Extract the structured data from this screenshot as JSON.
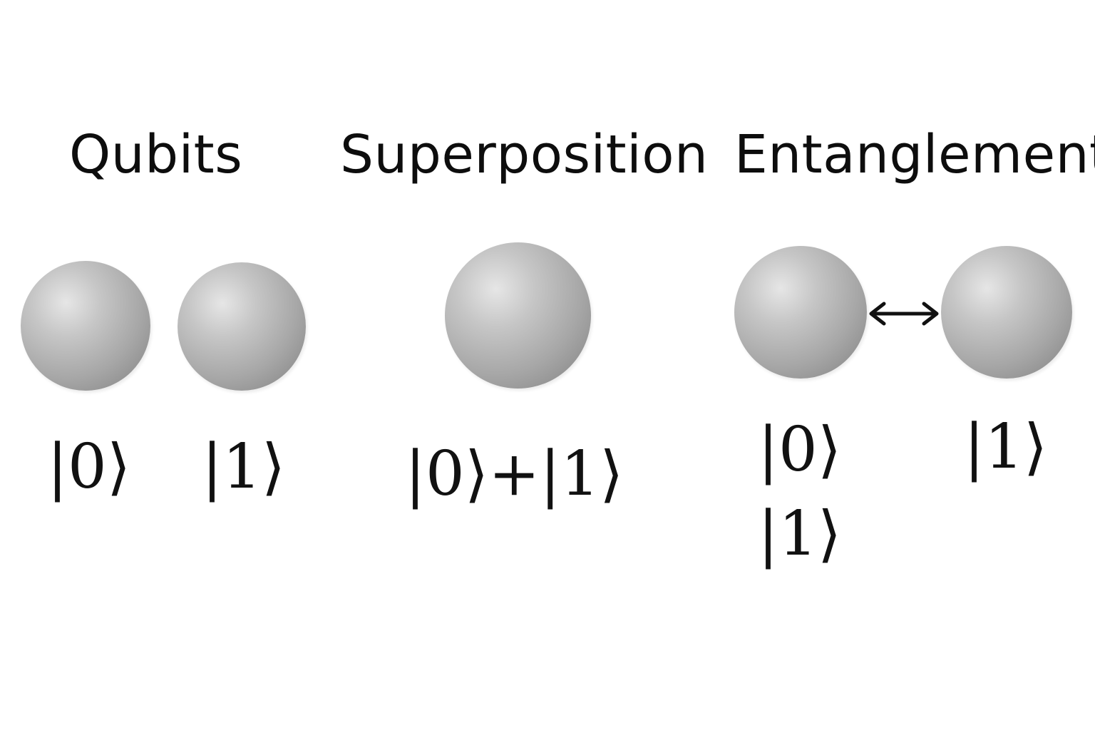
{
  "titles": {
    "qubits": "Qubits",
    "superposition": "Superposition",
    "entanglement": "Entanglement"
  },
  "kets": {
    "qubit_zero": "|0⟩",
    "qubit_one": "|1⟩",
    "superposition_state": "|0⟩+|1⟩",
    "entangled_left_zero": "|0⟩",
    "entangled_left_one": "|1⟩",
    "entangled_right_one": "|1⟩"
  },
  "colors": {
    "background": "#ffffff",
    "text": "#0d0d0d",
    "sphere_highlight": "#e6e6e6",
    "sphere_shadow": "#7f7f7f"
  },
  "icons": {
    "entanglement_link": "double-headed-arrow-icon"
  }
}
